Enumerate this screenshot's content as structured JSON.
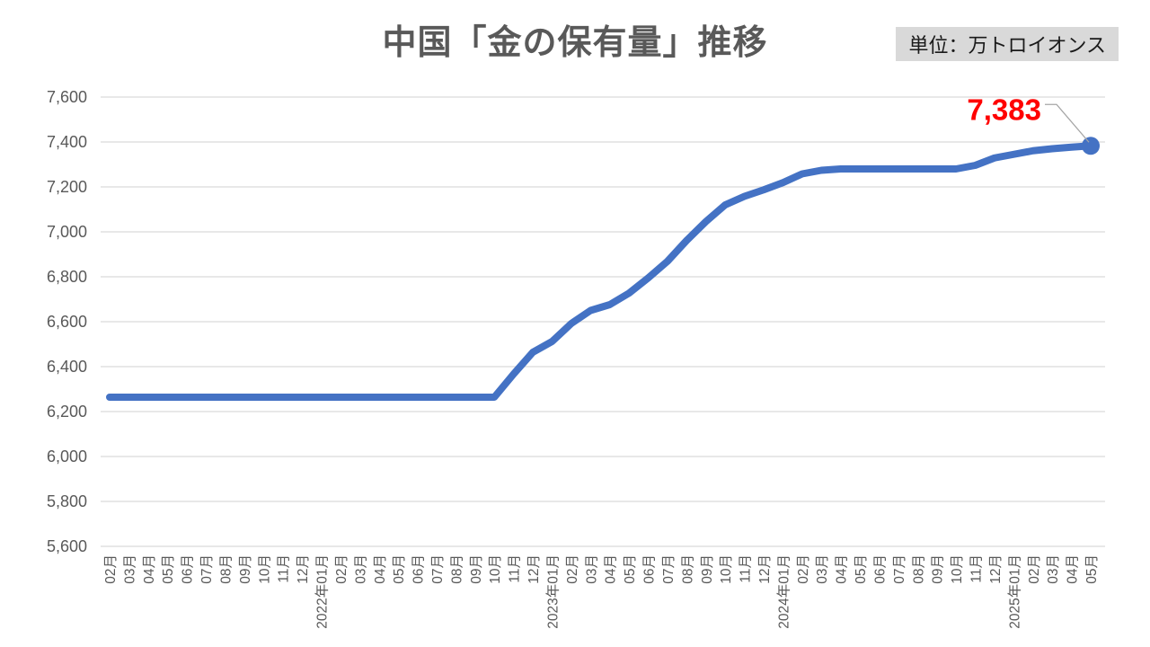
{
  "colors": {
    "line": "#4472C4",
    "marker": "#4472C4",
    "annotation_text": "#FF0000",
    "leader_line": "#A6A6A6",
    "grid": "#D9D9D9",
    "axis_text": "#595959",
    "title_text": "#595959",
    "unit_bg": "#D9D9D9",
    "unit_text": "#1A1A1A",
    "background": "#FFFFFF"
  },
  "chart_data": {
    "type": "line",
    "title": "中国「金の保有量」推移",
    "unit_label": "単位：万トロイオンス",
    "legend": "none",
    "grid": "horizontal-only",
    "x_axis_label_rotation_deg": 90,
    "x": [
      "02月",
      "03月",
      "04月",
      "05月",
      "06月",
      "07月",
      "08月",
      "09月",
      "10月",
      "11月",
      "12月",
      "2022年01月",
      "02月",
      "03月",
      "04月",
      "05月",
      "06月",
      "07月",
      "08月",
      "09月",
      "10月",
      "11月",
      "12月",
      "2023年01月",
      "02月",
      "03月",
      "04月",
      "05月",
      "06月",
      "07月",
      "08月",
      "09月",
      "10月",
      "11月",
      "12月",
      "2024年01月",
      "02月",
      "03月",
      "04月",
      "05月",
      "06月",
      "07月",
      "08月",
      "09月",
      "10月",
      "11月",
      "12月",
      "2025年01月",
      "02月",
      "03月",
      "04月",
      "05月"
    ],
    "series": [
      {
        "name": "金の保有量",
        "values": [
          6264,
          6264,
          6264,
          6264,
          6264,
          6264,
          6264,
          6264,
          6264,
          6264,
          6264,
          6264,
          6264,
          6264,
          6264,
          6264,
          6264,
          6264,
          6264,
          6264,
          6264,
          6367,
          6464,
          6512,
          6592,
          6650,
          6676,
          6727,
          6795,
          6869,
          6962,
          7046,
          7120,
          7158,
          7187,
          7219,
          7258,
          7274,
          7280,
          7280,
          7280,
          7280,
          7280,
          7280,
          7280,
          7296,
          7329,
          7345,
          7361,
          7370,
          7377,
          7383
        ]
      }
    ],
    "ylim": [
      5600,
      7600
    ],
    "ytick_values": [
      7600,
      7400,
      7200,
      7000,
      6800,
      6600,
      6400,
      6200,
      6000,
      5800,
      5600
    ],
    "ytick_labels": [
      "7,600",
      "7,400",
      "7,200",
      "7,000",
      "6,800",
      "6,600",
      "6,400",
      "6,200",
      "6,000",
      "5,800",
      "5,600"
    ],
    "annotation": {
      "text": "7,383",
      "target": "last-point"
    }
  }
}
